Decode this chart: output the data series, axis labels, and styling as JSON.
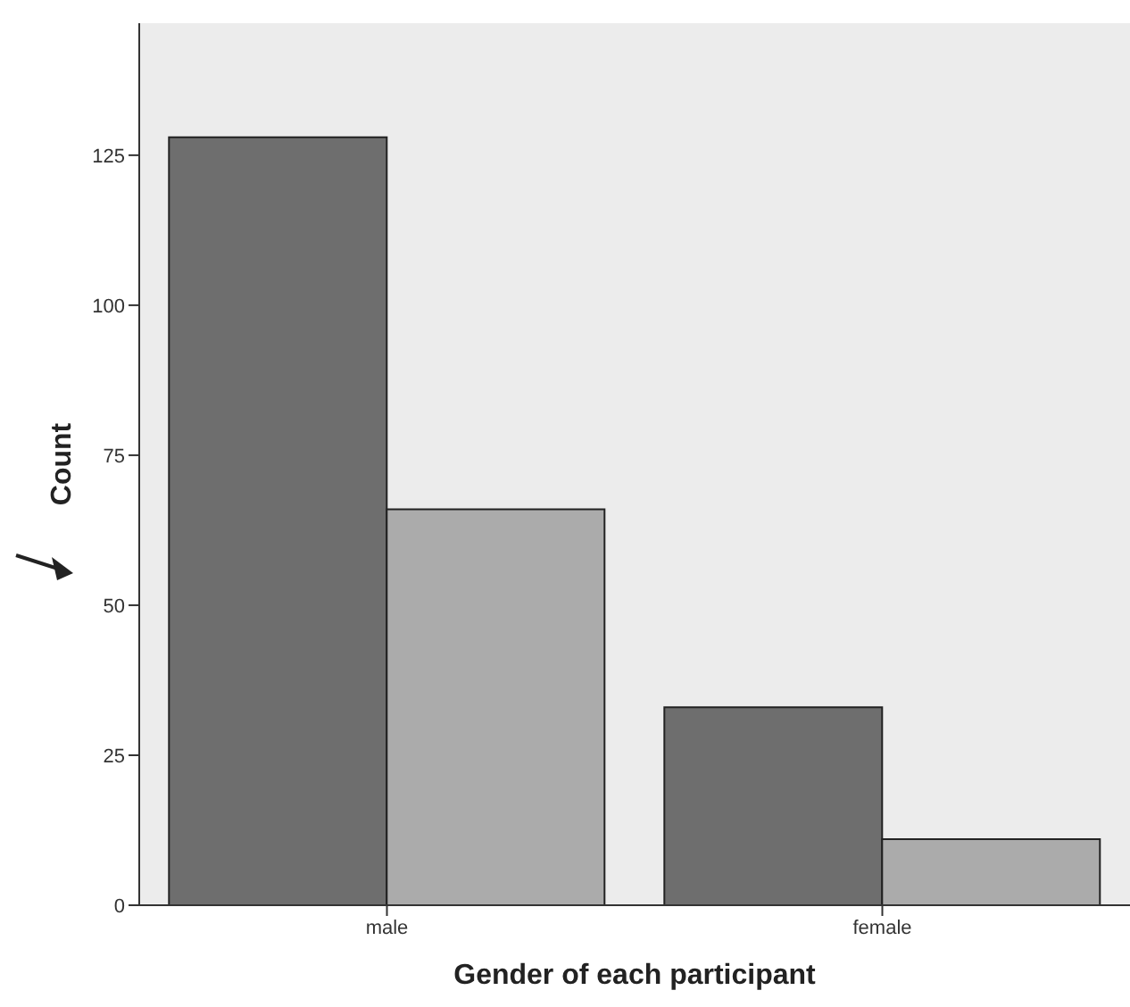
{
  "chart_data": {
    "type": "bar",
    "xlabel": "Gender of each participant",
    "ylabel": "Count",
    "categories": [
      "male",
      "female"
    ],
    "series": [
      {
        "color": "#6e6e6e",
        "values": [
          128,
          33
        ]
      },
      {
        "color": "#ababab",
        "values": [
          66,
          11
        ]
      }
    ],
    "ylim": [
      0,
      147
    ],
    "yticks": [
      0,
      25,
      50,
      75,
      100,
      125
    ],
    "grid": false,
    "legend": false
  }
}
